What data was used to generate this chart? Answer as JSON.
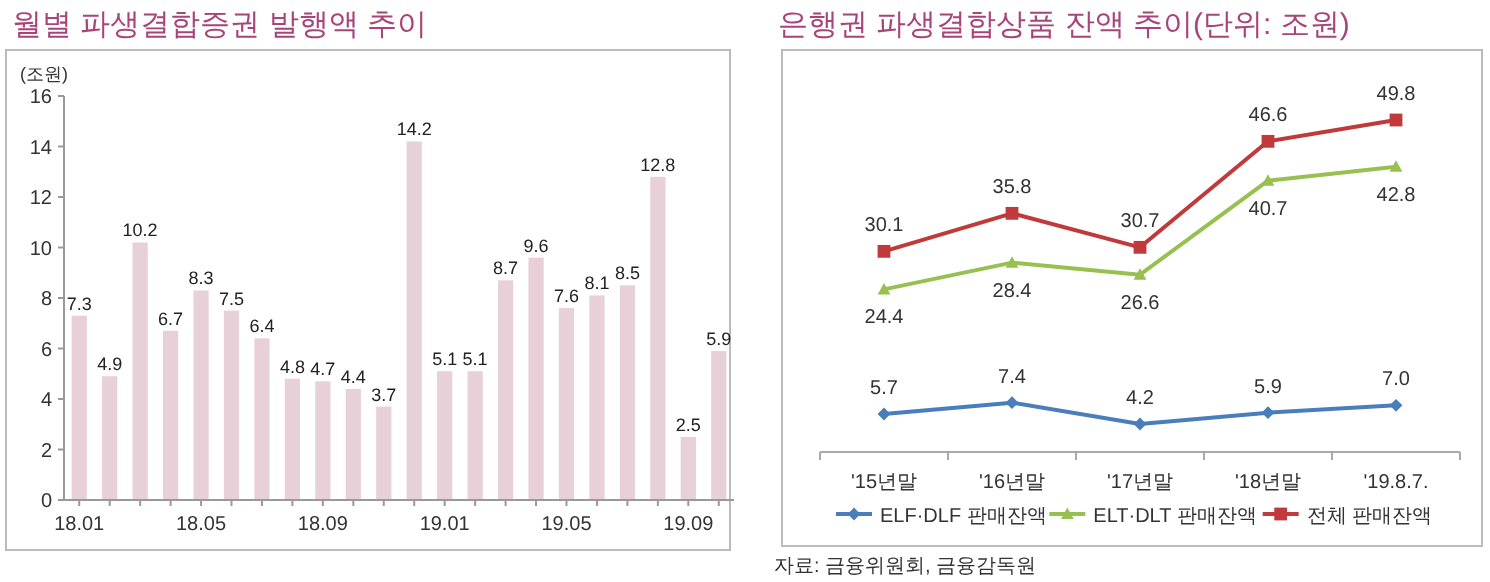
{
  "chart_data": [
    {
      "type": "bar",
      "title": "월별 파생결합증권 발행액 추이",
      "ylabel": "(조원)",
      "categories": [
        "18.01",
        null,
        null,
        null,
        "18.05",
        null,
        null,
        null,
        "18.09",
        null,
        null,
        null,
        "19.01",
        null,
        null,
        null,
        "19.05",
        null,
        null,
        null,
        "19.09",
        null
      ],
      "values": [
        7.3,
        4.9,
        10.2,
        6.7,
        8.3,
        7.5,
        6.4,
        4.8,
        4.7,
        4.4,
        3.7,
        14.2,
        5.1,
        5.1,
        8.7,
        9.6,
        7.6,
        8.1,
        8.5,
        12.8,
        2.5,
        5.9
      ],
      "color": "#e8d0d9",
      "ylim": [
        0,
        16
      ],
      "yticks": [
        0,
        2,
        4,
        6,
        8,
        10,
        12,
        14,
        16
      ],
      "data_labels": true
    },
    {
      "type": "line",
      "title": "은행권 파생결합상품 잔액 추이(단위: 조원)",
      "categories": [
        "'15년말",
        "'16년말",
        "'17년말",
        "'18년말",
        "'19.8.7."
      ],
      "series": [
        {
          "name": "ELF·DLF 판매잔액",
          "color": "#4a7ebb",
          "marker": "diamond",
          "values": [
            5.7,
            7.4,
            4.2,
            5.9,
            7.0
          ],
          "value_labels": [
            "5.7",
            "7.4",
            "4.2",
            "5.9",
            "7.0"
          ]
        },
        {
          "name": "ELT·DLT 판매잔액",
          "color": "#98c050",
          "marker": "triangle",
          "values": [
            24.4,
            28.4,
            26.6,
            40.7,
            42.8
          ],
          "value_labels": [
            "24.4",
            "28.4",
            "26.6",
            "40.7",
            "42.8"
          ]
        },
        {
          "name": "전체 판매잔액",
          "color": "#c0393b",
          "marker": "square",
          "values": [
            30.1,
            35.8,
            30.7,
            46.6,
            49.8
          ],
          "value_labels": [
            "30.1",
            "35.8",
            "30.7",
            "46.6",
            "49.8"
          ]
        }
      ],
      "tick_labels": "x",
      "legend": "bottom",
      "annotations": [
        "자료: 금융위원회, 금융감독원"
      ]
    }
  ]
}
